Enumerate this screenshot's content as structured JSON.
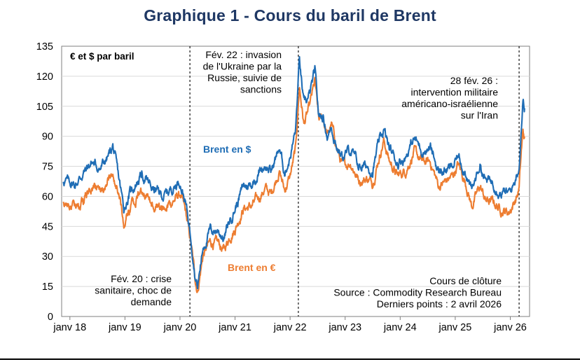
{
  "chart_data": {
    "type": "line",
    "title": "Graphique 1 - Cours du baril de Brent",
    "unit_label": "€ et $ par baril",
    "ylim": [
      0,
      135
    ],
    "yticks": [
      0,
      15,
      30,
      45,
      60,
      75,
      90,
      105,
      120,
      135
    ],
    "xlim": [
      2017.85,
      2026.35
    ],
    "xticks": [
      {
        "label": "janv 18",
        "x": 2018
      },
      {
        "label": "janv 19",
        "x": 2019
      },
      {
        "label": "janv 20",
        "x": 2020
      },
      {
        "label": "janv 21",
        "x": 2021
      },
      {
        "label": "janv 22",
        "x": 2022
      },
      {
        "label": "janv 23",
        "x": 2023
      },
      {
        "label": "janv 24",
        "x": 2024
      },
      {
        "label": "janv 25",
        "x": 2025
      },
      {
        "label": "janv 26",
        "x": 2026
      }
    ],
    "events": [
      {
        "x": 2020.18,
        "lines": [
          "Fév. 20 : crise",
          "sanitaire, choc de",
          "demande"
        ]
      },
      {
        "x": 2022.15,
        "lines": [
          "Fév. 22 : invasion",
          "de l'Ukraine par la",
          "Russie, suivie de",
          "sanctions"
        ]
      },
      {
        "x": 2026.16,
        "lines": [
          "28 fév. 26 :",
          "intervention militaire",
          "américano-israélienne",
          "sur l'Iran"
        ]
      }
    ],
    "series": [
      {
        "name": "Brent en $",
        "color": "#1f6db5",
        "points": [
          [
            2017.88,
            68
          ],
          [
            2018.0,
            67
          ],
          [
            2018.1,
            66
          ],
          [
            2018.25,
            72
          ],
          [
            2018.4,
            77
          ],
          [
            2018.55,
            74
          ],
          [
            2018.7,
            80
          ],
          [
            2018.78,
            85
          ],
          [
            2018.88,
            70
          ],
          [
            2018.98,
            54
          ],
          [
            2019.1,
            62
          ],
          [
            2019.3,
            71
          ],
          [
            2019.5,
            64
          ],
          [
            2019.7,
            60
          ],
          [
            2019.85,
            64
          ],
          [
            2020.0,
            68
          ],
          [
            2020.1,
            57
          ],
          [
            2020.2,
            40
          ],
          [
            2020.28,
            20
          ],
          [
            2020.32,
            15
          ],
          [
            2020.42,
            35
          ],
          [
            2020.55,
            43
          ],
          [
            2020.7,
            43
          ],
          [
            2020.8,
            39
          ],
          [
            2020.9,
            48
          ],
          [
            2021.0,
            54
          ],
          [
            2021.15,
            65
          ],
          [
            2021.3,
            66
          ],
          [
            2021.45,
            73
          ],
          [
            2021.55,
            76
          ],
          [
            2021.65,
            72
          ],
          [
            2021.8,
            84
          ],
          [
            2021.9,
            72
          ],
          [
            2022.0,
            80
          ],
          [
            2022.1,
            93
          ],
          [
            2022.17,
            128
          ],
          [
            2022.25,
            105
          ],
          [
            2022.35,
            110
          ],
          [
            2022.45,
            122
          ],
          [
            2022.52,
            100
          ],
          [
            2022.6,
            100
          ],
          [
            2022.68,
            90
          ],
          [
            2022.75,
            95
          ],
          [
            2022.85,
            85
          ],
          [
            2022.95,
            80
          ],
          [
            2023.1,
            83
          ],
          [
            2023.25,
            75
          ],
          [
            2023.4,
            75
          ],
          [
            2023.5,
            73
          ],
          [
            2023.6,
            85
          ],
          [
            2023.7,
            93
          ],
          [
            2023.8,
            84
          ],
          [
            2023.95,
            77
          ],
          [
            2024.1,
            80
          ],
          [
            2024.25,
            89
          ],
          [
            2024.4,
            83
          ],
          [
            2024.55,
            84
          ],
          [
            2024.7,
            72
          ],
          [
            2024.8,
            73
          ],
          [
            2024.95,
            74
          ],
          [
            2025.05,
            80
          ],
          [
            2025.2,
            72
          ],
          [
            2025.3,
            62
          ],
          [
            2025.45,
            76
          ],
          [
            2025.55,
            68
          ],
          [
            2025.7,
            67
          ],
          [
            2025.8,
            63
          ],
          [
            2025.9,
            62
          ],
          [
            2025.97,
            61
          ],
          [
            2026.05,
            65
          ],
          [
            2026.12,
            72
          ],
          [
            2026.16,
            75
          ],
          [
            2026.2,
            95
          ],
          [
            2026.23,
            108
          ],
          [
            2026.26,
            104
          ]
        ]
      },
      {
        "name": "Brent en €",
        "color": "#ed7d31",
        "points": [
          [
            2017.88,
            57
          ],
          [
            2018.0,
            55
          ],
          [
            2018.1,
            54
          ],
          [
            2018.25,
            58
          ],
          [
            2018.4,
            64
          ],
          [
            2018.55,
            63
          ],
          [
            2018.7,
            69
          ],
          [
            2018.78,
            74
          ],
          [
            2018.88,
            62
          ],
          [
            2018.98,
            47
          ],
          [
            2019.1,
            54
          ],
          [
            2019.3,
            63
          ],
          [
            2019.5,
            57
          ],
          [
            2019.7,
            54
          ],
          [
            2019.85,
            57
          ],
          [
            2020.0,
            61
          ],
          [
            2020.1,
            52
          ],
          [
            2020.2,
            36
          ],
          [
            2020.28,
            18
          ],
          [
            2020.32,
            13
          ],
          [
            2020.42,
            31
          ],
          [
            2020.55,
            37
          ],
          [
            2020.7,
            36
          ],
          [
            2020.8,
            33
          ],
          [
            2020.9,
            40
          ],
          [
            2021.0,
            44
          ],
          [
            2021.15,
            54
          ],
          [
            2021.3,
            55
          ],
          [
            2021.45,
            60
          ],
          [
            2021.55,
            64
          ],
          [
            2021.65,
            61
          ],
          [
            2021.8,
            73
          ],
          [
            2021.9,
            63
          ],
          [
            2022.0,
            70
          ],
          [
            2022.1,
            83
          ],
          [
            2022.17,
            115
          ],
          [
            2022.25,
            96
          ],
          [
            2022.35,
            104
          ],
          [
            2022.45,
            117
          ],
          [
            2022.52,
            98
          ],
          [
            2022.6,
            99
          ],
          [
            2022.68,
            90
          ],
          [
            2022.75,
            96
          ],
          [
            2022.85,
            84
          ],
          [
            2022.95,
            75
          ],
          [
            2023.1,
            77
          ],
          [
            2023.25,
            68
          ],
          [
            2023.4,
            69
          ],
          [
            2023.5,
            67
          ],
          [
            2023.6,
            78
          ],
          [
            2023.7,
            88
          ],
          [
            2023.8,
            78
          ],
          [
            2023.95,
            70
          ],
          [
            2024.1,
            73
          ],
          [
            2024.25,
            82
          ],
          [
            2024.4,
            77
          ],
          [
            2024.55,
            77
          ],
          [
            2024.7,
            65
          ],
          [
            2024.8,
            67
          ],
          [
            2024.95,
            70
          ],
          [
            2025.05,
            76
          ],
          [
            2025.2,
            66
          ],
          [
            2025.3,
            55
          ],
          [
            2025.45,
            65
          ],
          [
            2025.55,
            58
          ],
          [
            2025.7,
            57
          ],
          [
            2025.8,
            54
          ],
          [
            2025.9,
            53
          ],
          [
            2025.97,
            52
          ],
          [
            2026.05,
            56
          ],
          [
            2026.12,
            60
          ],
          [
            2026.16,
            64
          ],
          [
            2026.2,
            82
          ],
          [
            2026.23,
            92
          ],
          [
            2026.26,
            89
          ]
        ]
      }
    ],
    "series_labels": [
      {
        "text": "Brent en $",
        "color": "#1f6db5"
      },
      {
        "text": "Brent en €",
        "color": "#ed7d31"
      }
    ],
    "notes": [
      "Cours de clôture",
      "Source : Commodity Research Bureau",
      "Derniers points : 2 avril 2026"
    ]
  }
}
